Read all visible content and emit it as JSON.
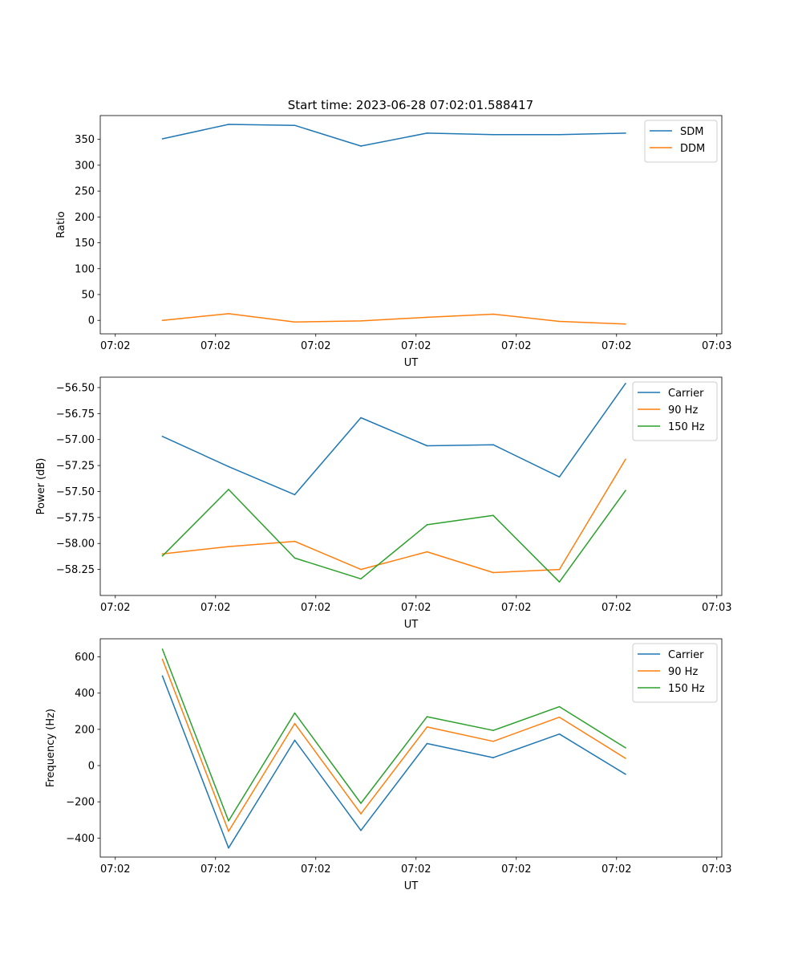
{
  "figure_title": "Start time: 2023-06-28 07:02:01.588417",
  "chart_data": [
    {
      "type": "line",
      "title": "Start time: 2023-06-28 07:02:01.588417",
      "xlabel": "UT",
      "ylabel": "Ratio",
      "xlim": [
        -1.5,
        60.5
      ],
      "ylim": [
        -26,
        396
      ],
      "x_ticks": [
        0,
        10,
        20,
        30,
        40,
        50,
        60
      ],
      "x_tick_labels": [
        "07:02",
        "07:02",
        "07:02",
        "07:02",
        "07:02",
        "07:02",
        "07:03"
      ],
      "y_ticks": [
        0,
        50,
        100,
        150,
        200,
        250,
        300,
        350
      ],
      "y_tick_labels": [
        "0",
        "50",
        "100",
        "150",
        "200",
        "250",
        "300",
        "350"
      ],
      "legend_position": "top-right",
      "x": [
        4.7,
        11.3,
        17.9,
        24.5,
        31.1,
        37.7,
        44.3,
        50.9
      ],
      "series": [
        {
          "name": "SDM",
          "color": "#1f77b4",
          "values": [
            351,
            379,
            377,
            337,
            362,
            359,
            359,
            362
          ]
        },
        {
          "name": "DDM",
          "color": "#ff7f0e",
          "values": [
            0,
            13,
            -3,
            -1,
            6,
            12,
            -2,
            -7
          ]
        }
      ]
    },
    {
      "type": "line",
      "title": "",
      "xlabel": "UT",
      "ylabel": "Power (dB)",
      "xlim": [
        -1.5,
        60.5
      ],
      "ylim": [
        -58.5,
        -56.4
      ],
      "x_ticks": [
        0,
        10,
        20,
        30,
        40,
        50,
        60
      ],
      "x_tick_labels": [
        "07:02",
        "07:02",
        "07:02",
        "07:02",
        "07:02",
        "07:02",
        "07:03"
      ],
      "y_ticks": [
        -58.25,
        -58.0,
        -57.75,
        -57.5,
        -57.25,
        -57.0,
        -56.75,
        -56.5
      ],
      "y_tick_labels": [
        "−58.25",
        "−58.00",
        "−57.75",
        "−57.50",
        "−57.25",
        "−57.00",
        "−56.75",
        "−56.50"
      ],
      "legend_position": "top-right",
      "x": [
        4.7,
        11.3,
        17.9,
        24.5,
        31.1,
        37.7,
        44.3,
        50.9
      ],
      "series": [
        {
          "name": "Carrier",
          "color": "#1f77b4",
          "values": [
            -56.97,
            -57.26,
            -57.53,
            -56.79,
            -57.06,
            -57.05,
            -57.36,
            -56.46
          ]
        },
        {
          "name": "90 Hz",
          "color": "#ff7f0e",
          "values": [
            -58.1,
            -58.03,
            -57.98,
            -58.25,
            -58.08,
            -58.28,
            -58.25,
            -57.19
          ]
        },
        {
          "name": "150 Hz",
          "color": "#2ca02c",
          "values": [
            -58.12,
            -57.48,
            -58.14,
            -58.34,
            -57.82,
            -57.73,
            -58.37,
            -57.49
          ]
        }
      ]
    },
    {
      "type": "line",
      "title": "",
      "xlabel": "UT",
      "ylabel": "Frequency (Hz)",
      "xlim": [
        -1.5,
        60.5
      ],
      "ylim": [
        -505,
        700
      ],
      "x_ticks": [
        0,
        10,
        20,
        30,
        40,
        50,
        60
      ],
      "x_tick_labels": [
        "07:02",
        "07:02",
        "07:02",
        "07:02",
        "07:02",
        "07:02",
        "07:03"
      ],
      "y_ticks": [
        -400,
        -200,
        0,
        200,
        400,
        600
      ],
      "y_tick_labels": [
        "−400",
        "−200",
        "0",
        "200",
        "400",
        "600"
      ],
      "legend_position": "top-right",
      "x": [
        4.7,
        11.3,
        17.9,
        24.5,
        31.1,
        37.7,
        44.3,
        50.9
      ],
      "series": [
        {
          "name": "Carrier",
          "color": "#1f77b4",
          "values": [
            495,
            -455,
            140,
            -358,
            122,
            44,
            174,
            -48
          ]
        },
        {
          "name": "90 Hz",
          "color": "#ff7f0e",
          "values": [
            587,
            -363,
            232,
            -266,
            213,
            134,
            267,
            40
          ]
        },
        {
          "name": "150 Hz",
          "color": "#2ca02c",
          "values": [
            643,
            -305,
            290,
            -208,
            270,
            194,
            325,
            98
          ]
        }
      ]
    }
  ]
}
